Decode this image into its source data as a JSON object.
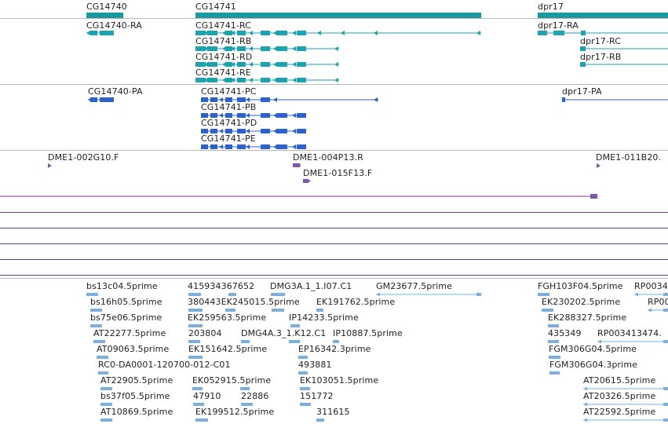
{
  "colors": {
    "gene": "#1a9aa0",
    "transcript": "#1aa3b0",
    "protein": "#2f62c8",
    "clone": "#7a56b0",
    "est": "#7ab0e0",
    "track_line": "#6b3f87",
    "separator": "#b9b9b9"
  },
  "tracks": {
    "genes": [
      {
        "label": "CG14740"
      },
      {
        "label": "CG14741"
      },
      {
        "label": "dpr17"
      }
    ],
    "transcripts": [
      {
        "label": "CG14740-RA"
      },
      {
        "label": "CG14741-RC"
      },
      {
        "label": "CG14741-RB"
      },
      {
        "label": "CG14741-RD"
      },
      {
        "label": "CG14741-RE"
      },
      {
        "label": "dpr17-RA"
      },
      {
        "label": "dpr17-RC"
      },
      {
        "label": "dpr17-RB"
      }
    ],
    "proteins": [
      {
        "label": "CG14740-PA"
      },
      {
        "label": "CG14741-PC"
      },
      {
        "label": "CG14741-PB"
      },
      {
        "label": "CG14741-PD"
      },
      {
        "label": "CG14741-PE"
      },
      {
        "label": "dpr17-PA"
      }
    ],
    "clones": [
      {
        "label": "DME1-002G10.F"
      },
      {
        "label": "DME1-004P13.R"
      },
      {
        "label": "DME1-015F13.F"
      },
      {
        "label": "DME1-011B20."
      }
    ],
    "ests": [
      {
        "label": "bs13c04.5prime"
      },
      {
        "label": "415934367652"
      },
      {
        "label": "DMG3A.1_1.I07.C1"
      },
      {
        "label": "GM23677.5prime"
      },
      {
        "label": "FGH103F04.5prime"
      },
      {
        "label": "RP0034"
      },
      {
        "label": "bs16h05.5prime"
      },
      {
        "label": "380443EK245015.5prime"
      },
      {
        "label": "EK191762.5prime"
      },
      {
        "label": "EK230202.5prime"
      },
      {
        "label": "RP00"
      },
      {
        "label": "bs75e06.5prime"
      },
      {
        "label": "EK259563.5prime"
      },
      {
        "label": "IP14233.5prime"
      },
      {
        "label": "EK288327.5prime"
      },
      {
        "label": "AT22277.5prime"
      },
      {
        "label": "203804"
      },
      {
        "label": "DMG4A.3_1.K12.C1"
      },
      {
        "label": "IP10887.5prime"
      },
      {
        "label": "435349"
      },
      {
        "label": "RP003413474."
      },
      {
        "label": "AT09063.5prime"
      },
      {
        "label": "EK151642.5prime"
      },
      {
        "label": "EP16342.3prime"
      },
      {
        "label": "FGM306G04.5prime"
      },
      {
        "label": "RC0-DA0001-120700-012-C01"
      },
      {
        "label": "493881"
      },
      {
        "label": "FGM306G04.3prime"
      },
      {
        "label": "AT22905.5prime"
      },
      {
        "label": "EK052915.5prime"
      },
      {
        "label": "EK103051.5prime"
      },
      {
        "label": "AT20615.5prime"
      },
      {
        "label": "bs37f05.5prime"
      },
      {
        "label": "47910"
      },
      {
        "label": "22886"
      },
      {
        "label": "151772"
      },
      {
        "label": "AT20326.5prime"
      },
      {
        "label": "AT10869.5prime"
      },
      {
        "label": "EK199512.5prime"
      },
      {
        "label": "311615"
      },
      {
        "label": "AT22592.5prime"
      }
    ]
  }
}
